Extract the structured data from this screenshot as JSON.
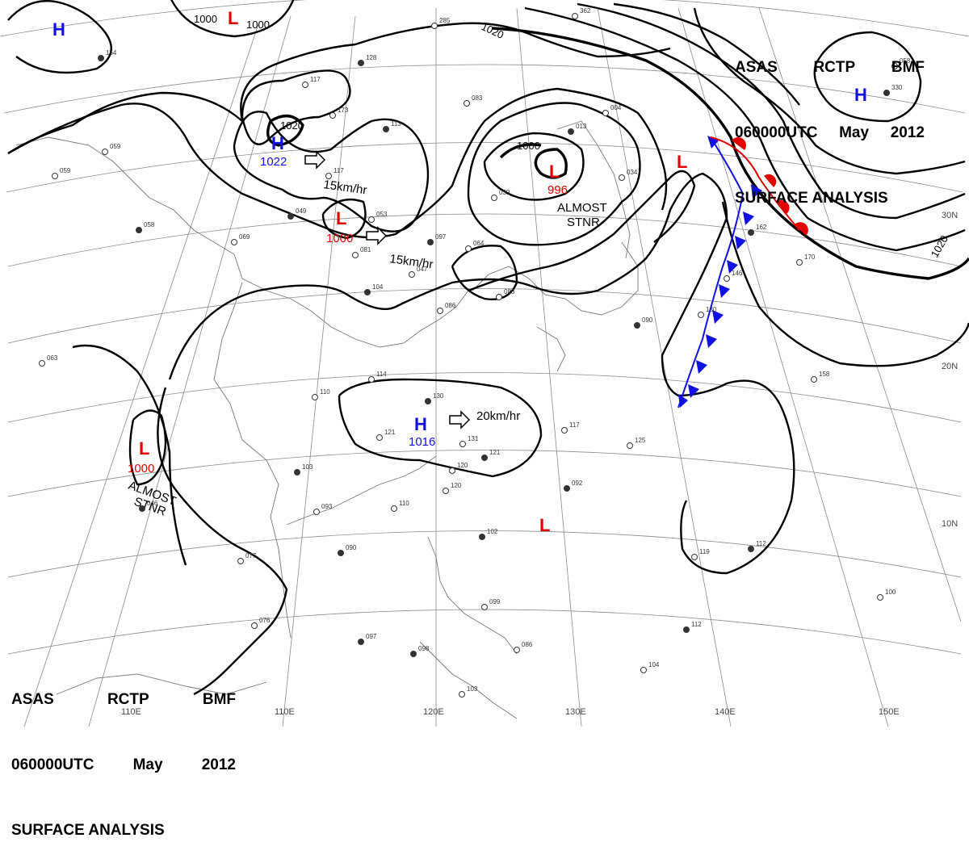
{
  "title": {
    "line1": [
      "ASAS",
      "RCTP",
      "BMF"
    ],
    "line2": [
      "060000UTC",
      "May",
      "2012"
    ],
    "line3": "SURFACE ANALYSIS"
  },
  "colors": {
    "high": "#1010e0",
    "low": "#e00000",
    "cold_front": "#1010e0",
    "warm_front": "#e00000",
    "isobar": "#000000",
    "grid": "#8a8a8a"
  },
  "longitude_labels": [
    "110E",
    "120E",
    "130E",
    "140E",
    "150E"
  ],
  "latitude_labels": [
    "30N",
    "20N",
    "10N"
  ],
  "isobar_labels": [
    "1000",
    "1000",
    "1020",
    "1000",
    "1020",
    "1020"
  ],
  "systems": [
    {
      "type": "H",
      "pressure": ""
    },
    {
      "type": "L",
      "pressure": ""
    },
    {
      "type": "H",
      "pressure": "1022"
    },
    {
      "type": "L",
      "pressure": "1000"
    },
    {
      "type": "L",
      "pressure": "996"
    },
    {
      "type": "L",
      "pressure": ""
    },
    {
      "type": "H",
      "pressure": ""
    },
    {
      "type": "H",
      "pressure": "1016"
    },
    {
      "type": "L",
      "pressure": "1000"
    },
    {
      "type": "L",
      "pressure": ""
    }
  ],
  "annotations": [
    "15km/hr",
    "15km/hr",
    "20km/hr",
    "ALMOST",
    "STNR",
    "ALMOST",
    "STNR"
  ],
  "station_values": [
    "154",
    "059",
    "059",
    "058",
    "069",
    "117",
    "049",
    "053",
    "081",
    "097",
    "064",
    "047",
    "104",
    "086",
    "083",
    "102",
    "110",
    "114",
    "130",
    "121",
    "131",
    "121",
    "120",
    "120",
    "103",
    "093",
    "110",
    "092",
    "117",
    "125",
    "090",
    "077",
    "076",
    "097",
    "099",
    "086",
    "098",
    "103",
    "119",
    "112",
    "100",
    "104",
    "112",
    "158",
    "170",
    "162",
    "146",
    "130",
    "090",
    "034",
    "004",
    "013",
    "039",
    "083",
    "113",
    "173",
    "117",
    "128",
    "285",
    "362",
    "330",
    "058",
    "063",
    "046"
  ]
}
